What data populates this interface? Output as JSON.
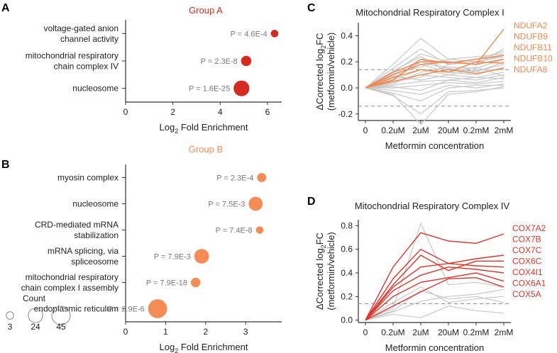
{
  "panel_letters": [
    "A",
    "B",
    "C",
    "D"
  ],
  "colors": {
    "groupA": "#d42a1f",
    "groupB": "#f58b55",
    "complexI_highlight": "#f2884d",
    "complexIV_highlight": "#e0332a",
    "background_lines": "#c8c8c8",
    "axis": "#333333",
    "pvalue_text": "#7a7a7a"
  },
  "chart_data": [
    {
      "id": "A",
      "type": "scatter",
      "title": "Group A",
      "xlabel": "Log2 Fold Enrichment",
      "xlim": [
        0,
        6.6
      ],
      "xticks": [
        0,
        2,
        4,
        6
      ],
      "categories": [
        "voltage-gated anion channel activity",
        "mitochondrial respiratory chain complex IV",
        "nucleosome"
      ],
      "category_lines": [
        [
          "voltage-gated anion",
          "channel activity"
        ],
        [
          "mitochondrial respiratory",
          "chain complex IV"
        ],
        [
          "nucleosome"
        ]
      ],
      "values": [
        6.3,
        5.1,
        4.9
      ],
      "counts": [
        3,
        9,
        30
      ],
      "pvalues": [
        "P = 4.6E-4",
        "P = 2.3E-8",
        "P = 1.6E-25"
      ]
    },
    {
      "id": "B",
      "type": "scatter",
      "title": "Group B",
      "xlabel": "Log2 Fold Enrichment",
      "xlim": [
        0,
        3.9
      ],
      "xticks": [
        0,
        1,
        2,
        3
      ],
      "categories": [
        "myosin complex",
        "nucleosome",
        "CRD-mediated mRNA stabilization",
        "mRNA splicing, via spliceosome",
        "mitochondrial respiratory chain complex I assembly",
        "endoplasmic reticulum"
      ],
      "category_lines": [
        [
          "myosin complex"
        ],
        [
          "nucleosome"
        ],
        [
          "CRD-mediated mRNA",
          "stabilization"
        ],
        [
          "mRNA splicing, via",
          "spliceosome"
        ],
        [
          "mitochondrial respiratory",
          "chain complex I assembly"
        ],
        [
          "endoplasmic reticulum"
        ]
      ],
      "values": [
        3.4,
        3.25,
        3.35,
        1.9,
        1.75,
        0.8
      ],
      "counts": [
        6,
        22,
        3,
        25,
        7,
        48
      ],
      "pvalues": [
        "P = 2.3E-4",
        "P = 7.5E-3",
        "P = 7.4E-8",
        "P = 7.9E-3",
        "P = 7.9E-18",
        "P = 2.9E-6"
      ],
      "legend": {
        "title": "Count",
        "sizes": [
          3,
          24,
          45
        ]
      }
    },
    {
      "id": "C",
      "type": "line",
      "title": "Mitochondrial Respiratory Complex  I",
      "xlabel": "Metformin concentration",
      "ylabel": "ΔCorrected log2FC (metformin/vehicle)",
      "categories": [
        "0",
        "0.2uM",
        "2uM",
        "20uM",
        "0.2mM",
        "2mM"
      ],
      "ylim": [
        -0.25,
        0.5
      ],
      "yticks": [
        -0.2,
        0,
        0.2,
        0.4
      ],
      "threshold": [
        0.14,
        -0.14
      ],
      "highlight_series": [
        {
          "name": "NDUFA2",
          "values": [
            0,
            0.12,
            0.2,
            0.2,
            0.18,
            0.45
          ]
        },
        {
          "name": "NDUFB9",
          "values": [
            0,
            0.06,
            0.22,
            0.19,
            0.22,
            0.25
          ]
        },
        {
          "name": "NDUFB11",
          "values": [
            0,
            0.1,
            0.18,
            0.2,
            0.18,
            0.22
          ]
        },
        {
          "name": "NDUFB10",
          "values": [
            0,
            0.08,
            0.14,
            0.12,
            0.2,
            0.19
          ]
        },
        {
          "name": "NDUFA8",
          "values": [
            0,
            0.05,
            0.1,
            0.14,
            0.11,
            0.15
          ]
        }
      ],
      "background_series": [
        [
          0,
          0.18,
          0.38,
          0.22,
          0.2,
          0.25
        ],
        [
          0,
          0.15,
          0.3,
          0.18,
          0.22,
          0.28
        ],
        [
          0,
          0.12,
          0.26,
          0.2,
          0.18,
          0.3
        ],
        [
          0,
          0.1,
          0.22,
          0.15,
          0.12,
          0.2
        ],
        [
          0,
          0.08,
          0.18,
          0.12,
          0.1,
          0.16
        ],
        [
          0,
          0.06,
          0.14,
          0.1,
          0.08,
          0.12
        ],
        [
          0,
          0.04,
          0.1,
          0.08,
          0.06,
          0.1
        ],
        [
          0,
          0.02,
          0.05,
          0.06,
          0.04,
          0.08
        ],
        [
          0,
          0.0,
          0.02,
          0.04,
          0.03,
          0.05
        ],
        [
          0,
          -0.02,
          -0.05,
          0.02,
          0.0,
          0.03
        ],
        [
          0,
          -0.04,
          -0.1,
          0.0,
          0.02,
          0.02
        ],
        [
          0,
          -0.06,
          -0.2,
          -0.03,
          -0.02,
          0.0
        ],
        [
          0,
          -0.05,
          -0.28,
          -0.05,
          -0.03,
          0.01
        ],
        [
          0,
          0.03,
          0.12,
          0.16,
          0.15,
          0.22
        ],
        [
          0,
          0.07,
          0.2,
          0.14,
          0.13,
          0.18
        ],
        [
          0,
          0.11,
          0.16,
          0.22,
          0.24,
          0.26
        ],
        [
          0,
          0.05,
          0.08,
          0.18,
          0.2,
          0.24
        ],
        [
          0,
          0.09,
          0.06,
          0.1,
          0.14,
          0.14
        ],
        [
          0,
          0.01,
          -0.02,
          0.06,
          0.08,
          0.07
        ],
        [
          0,
          0.13,
          0.24,
          0.12,
          0.16,
          0.09
        ]
      ]
    },
    {
      "id": "D",
      "type": "line",
      "title": "Mitochondrial Respiratory Complex  IV",
      "xlabel": "Metformin concentration",
      "ylabel": "ΔCorrected log2FC (metformin/vehicle)",
      "categories": [
        "0",
        "0.2uM",
        "2uM",
        "20uM",
        "0.2mM",
        "2mM"
      ],
      "ylim": [
        -0.02,
        0.85
      ],
      "yticks": [
        0.0,
        0.2,
        0.4,
        0.6,
        0.8
      ],
      "threshold": [
        0.14
      ],
      "highlight_series": [
        {
          "name": "COX7A2",
          "values": [
            0,
            0.45,
            0.74,
            0.67,
            0.65,
            0.73
          ]
        },
        {
          "name": "COX7B",
          "values": [
            0,
            0.35,
            0.6,
            0.48,
            0.52,
            0.55
          ]
        },
        {
          "name": "COX7C",
          "values": [
            0,
            0.3,
            0.55,
            0.42,
            0.5,
            0.5
          ]
        },
        {
          "name": "COX6C",
          "values": [
            0,
            0.28,
            0.45,
            0.48,
            0.46,
            0.45
          ]
        },
        {
          "name": "COX4I1",
          "values": [
            0,
            0.25,
            0.38,
            0.45,
            0.43,
            0.4
          ]
        },
        {
          "name": "COX6A1",
          "values": [
            0,
            0.2,
            0.32,
            0.36,
            0.4,
            0.33
          ]
        },
        {
          "name": "COX5A",
          "values": [
            0,
            0.12,
            0.24,
            0.35,
            0.36,
            0.28
          ]
        }
      ],
      "background_series": [
        [
          0,
          0.1,
          0.82,
          0.3,
          0.32,
          0.28
        ],
        [
          0,
          0.08,
          0.25,
          0.18,
          0.2,
          0.15
        ],
        [
          0,
          0.05,
          0.02,
          0.12,
          0.08,
          0.06
        ],
        [
          0,
          0.07,
          0.16,
          0.2,
          0.22,
          0.26
        ],
        [
          0,
          0.15,
          0.28,
          0.15,
          0.18,
          0.2
        ]
      ]
    }
  ]
}
